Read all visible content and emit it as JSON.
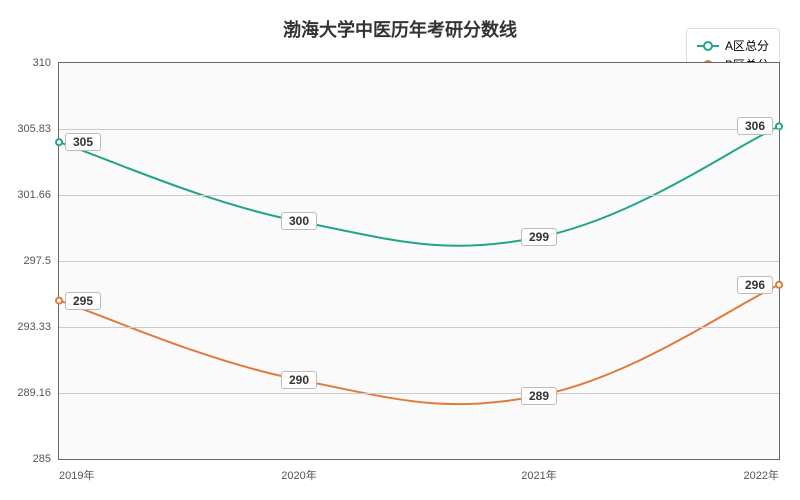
{
  "chart": {
    "type": "line",
    "title": "渤海大学中医历年考研分数线",
    "title_fontsize": 18,
    "title_color": "#333333",
    "background_color": "#ffffff",
    "plot_background": "#fafafa",
    "grid_color": "#cccccc",
    "axis_color": "#666666",
    "label_fontsize": 11,
    "label_color": "#555555",
    "x_categories": [
      "2019年",
      "2020年",
      "2021年",
      "2022年"
    ],
    "ylim": [
      285,
      310
    ],
    "ytick_step": 4.17,
    "y_ticks": [
      "285",
      "289.16",
      "293.33",
      "297.5",
      "301.66",
      "305.83",
      "310"
    ],
    "series": [
      {
        "name": "A区总分",
        "color": "#1fa589",
        "values": [
          305,
          300,
          299,
          306
        ],
        "line_width": 2,
        "marker": "circle-open",
        "marker_size": 6,
        "smooth": true
      },
      {
        "name": "B区总分",
        "color": "#e07b3c",
        "values": [
          295,
          290,
          289,
          296
        ],
        "line_width": 2,
        "marker": "circle-open",
        "marker_size": 6,
        "smooth": true
      }
    ],
    "legend_position": "top-right",
    "legend_fontsize": 12,
    "value_label_fontsize": 12,
    "value_label_bg": "rgba(255,255,255,0.92)",
    "value_label_border": "#bbbbbb"
  }
}
